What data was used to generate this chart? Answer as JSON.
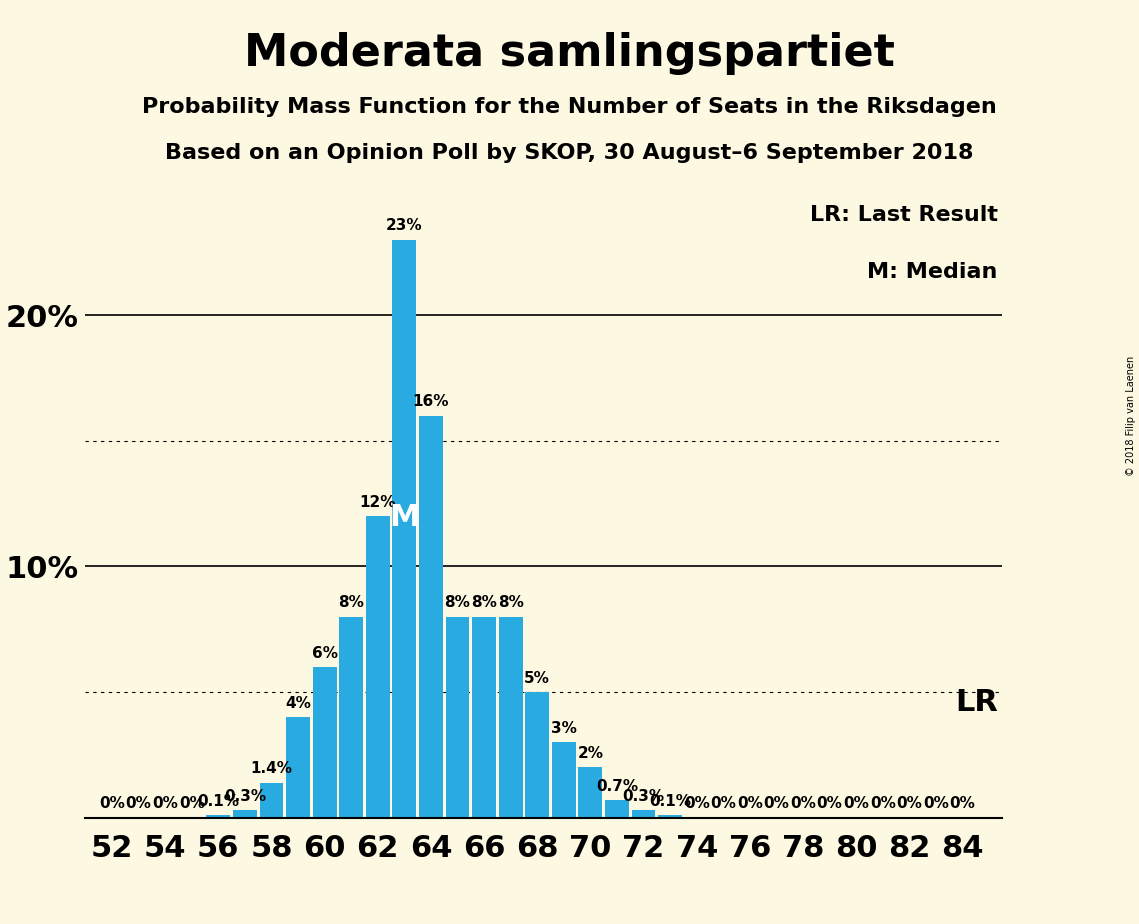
{
  "title": "Moderata samlingspartiet",
  "subtitle1": "Probability Mass Function for the Number of Seats in the Riksdagen",
  "subtitle2": "Based on an Opinion Poll by SKOP, 30 August–6 September 2018",
  "copyright": "© 2018 Filip van Laenen",
  "legend_lr": "LR: Last Result",
  "legend_m": "M: Median",
  "lr_label": "LR",
  "median_label": "M",
  "background_color": "#fdf8e1",
  "bar_color": "#29abe2",
  "seats": [
    52,
    53,
    54,
    55,
    56,
    57,
    58,
    59,
    60,
    61,
    62,
    63,
    64,
    65,
    66,
    67,
    68,
    69,
    70,
    71,
    72,
    73,
    74,
    75,
    76,
    77,
    78,
    79,
    80,
    81,
    82,
    83,
    84
  ],
  "probs": [
    0.0,
    0.0,
    0.0,
    0.0,
    0.1,
    0.3,
    1.4,
    4.0,
    6.0,
    8.0,
    12.0,
    23.0,
    16.0,
    8.0,
    8.0,
    8.0,
    5.0,
    3.0,
    2.0,
    0.7,
    0.3,
    0.1,
    0.0,
    0.0,
    0.0,
    0.0,
    0.0,
    0.0,
    0.0,
    0.0,
    0.0,
    0.0,
    0.0
  ],
  "labels": [
    "0%",
    "0%",
    "0%",
    "0%",
    "0.1%",
    "0.3%",
    "1.4%",
    "4%",
    "6%",
    "8%",
    "12%",
    "23%",
    "16%",
    "8%",
    "8%",
    "8%",
    "5%",
    "3%",
    "2%",
    "0.7%",
    "0.3%",
    "0.1%",
    "0%",
    "0%",
    "0%",
    "0%",
    "0%",
    "0%",
    "0%",
    "0%",
    "0%",
    "0%",
    "0%"
  ],
  "median_seat": 63,
  "lr_seat": 84,
  "ylim": [
    0,
    25
  ],
  "solid_lines": [
    10.0,
    20.0
  ],
  "dotted_lines": [
    5.0,
    15.0
  ],
  "xticks": [
    52,
    54,
    56,
    58,
    60,
    62,
    64,
    66,
    68,
    70,
    72,
    74,
    76,
    78,
    80,
    82,
    84
  ],
  "title_fontsize": 32,
  "subtitle_fontsize": 16,
  "axis_tick_fontsize": 22,
  "bar_label_fontsize": 11,
  "legend_fontsize": 16,
  "lr_fontsize": 22,
  "median_text_color": "#ffffff",
  "median_text_fontsize": 22,
  "copyright_fontsize": 7
}
